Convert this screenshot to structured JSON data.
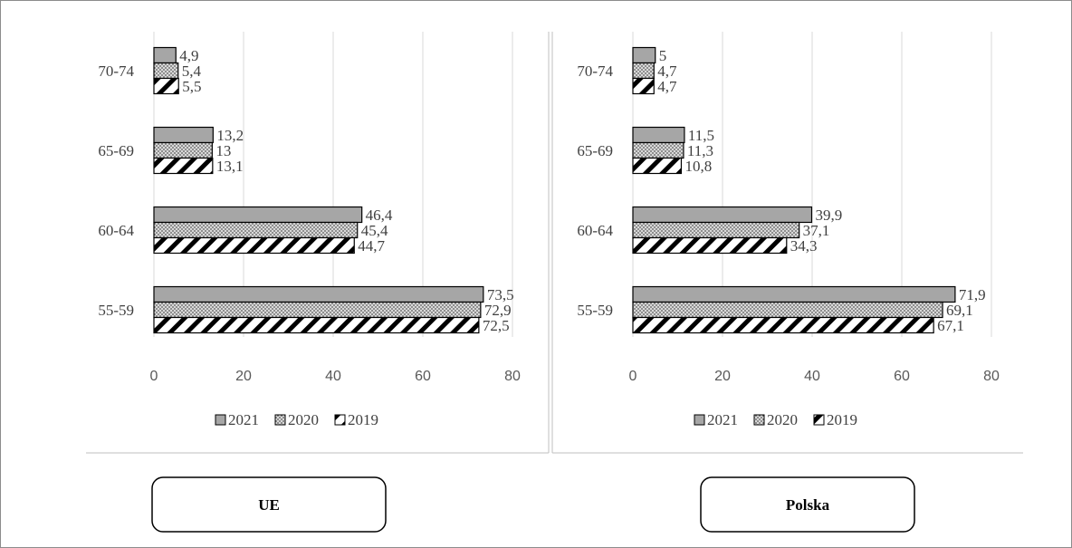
{
  "chart_data": [
    {
      "type": "bar",
      "orientation": "horizontal",
      "panel_label": "UE",
      "categories": [
        "55-59",
        "60-64",
        "65-69",
        "70-74"
      ],
      "series": [
        {
          "name": "2021",
          "values": [
            73.5,
            46.4,
            13.2,
            4.9
          ],
          "labels": [
            "73,5",
            "46,4",
            "13,2",
            "4,9"
          ]
        },
        {
          "name": "2020",
          "values": [
            72.9,
            45.4,
            13,
            5.4
          ],
          "labels": [
            "72,9",
            "45,4",
            "13",
            "5,4"
          ]
        },
        {
          "name": "2019",
          "values": [
            72.5,
            44.7,
            13.1,
            5.5
          ],
          "labels": [
            "72,5",
            "44,7",
            "13,1",
            "5,5"
          ]
        }
      ],
      "x_ticks": [
        "0",
        "20",
        "40",
        "60",
        "80"
      ],
      "xlim": [
        0,
        80
      ],
      "grid": true,
      "legend_position": "bottom"
    },
    {
      "type": "bar",
      "orientation": "horizontal",
      "panel_label": "Polska",
      "categories": [
        "55-59",
        "60-64",
        "65-69",
        "70-74"
      ],
      "series": [
        {
          "name": "2021",
          "values": [
            71.9,
            39.9,
            11.5,
            5
          ],
          "labels": [
            "71,9",
            "39,9",
            "11,5",
            "5"
          ]
        },
        {
          "name": "2020",
          "values": [
            69.1,
            37.1,
            11.3,
            4.7
          ],
          "labels": [
            "69,1",
            "37,1",
            "11,3",
            "4,7"
          ]
        },
        {
          "name": "2019",
          "values": [
            67.1,
            34.3,
            10.8,
            4.7
          ],
          "labels": [
            "67,1",
            "34,3",
            "10,8",
            "4,7"
          ]
        }
      ],
      "x_ticks": [
        "0",
        "20",
        "40",
        "60",
        "80"
      ],
      "xlim": [
        0,
        80
      ],
      "grid": true,
      "legend_position": "bottom"
    }
  ],
  "colors": {
    "series_2021": "#a6a6a6",
    "series_2020": "#d9d9d9",
    "series_2019": "#ffffff",
    "gridline": "#d9d9d9",
    "text": "#404040"
  },
  "patterns": {
    "2021": "solid-gray",
    "2020": "dotted",
    "2019": "diagonal-stripes"
  }
}
